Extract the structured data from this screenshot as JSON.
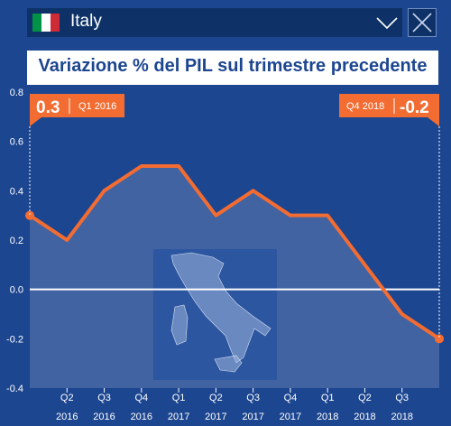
{
  "header": {
    "country": "Italy",
    "flag_colors": [
      "#009246",
      "#ffffff",
      "#ce2b37"
    ],
    "dropdown_icon": "chevron-down-icon",
    "close_icon": "close-icon"
  },
  "colors": {
    "background": "#1d4690",
    "line": "#f36c31",
    "zero_line": "#ffffff",
    "area": "#4d6ea8",
    "map": "#2c56a0"
  },
  "chart_data": {
    "type": "area",
    "title": "Variazione % del PIL sul trimestre precedente",
    "xlabel": "",
    "ylabel": "",
    "ylim": [
      -0.4,
      0.8
    ],
    "yticks": [
      -0.4,
      -0.2,
      0.0,
      0.2,
      0.4,
      0.6,
      0.8
    ],
    "ytick_labels": [
      "-0.4",
      "-0.2",
      "0.0",
      "0.2",
      "0.4",
      "0.6",
      "0.8"
    ],
    "grid": false,
    "legend": "none",
    "x": [
      "Q1 2016",
      "Q2 2016",
      "Q3 2016",
      "Q4 2016",
      "Q1 2017",
      "Q2 2017",
      "Q3 2017",
      "Q4 2017",
      "Q1 2018",
      "Q2 2018",
      "Q3 2018",
      "Q4 2018"
    ],
    "x_tick_labels": [
      {
        "q": "Q2",
        "year": "2016"
      },
      {
        "q": "Q3",
        "year": "2016"
      },
      {
        "q": "Q4",
        "year": "2016"
      },
      {
        "q": "Q1",
        "year": "2017"
      },
      {
        "q": "Q2",
        "year": "2017"
      },
      {
        "q": "Q3",
        "year": "2017"
      },
      {
        "q": "Q4",
        "year": "2017"
      },
      {
        "q": "Q1",
        "year": "2018"
      },
      {
        "q": "Q2",
        "year": "2018"
      },
      {
        "q": "Q3",
        "year": "2018"
      }
    ],
    "values": [
      0.3,
      0.2,
      0.4,
      0.5,
      0.5,
      0.3,
      0.4,
      0.3,
      0.3,
      0.1,
      -0.1,
      -0.2
    ],
    "annotations": {
      "start": {
        "value": "0.3",
        "period": "Q1 2016"
      },
      "end": {
        "value": "-0.2",
        "period": "Q4 2018"
      }
    }
  }
}
